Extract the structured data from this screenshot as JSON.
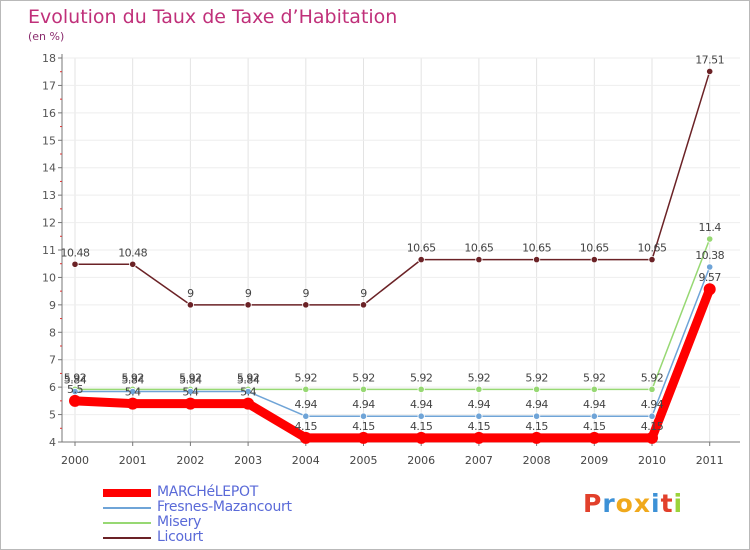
{
  "title": "Evolution du Taux de Taxe d’Habitation",
  "unit_label": "(en %)",
  "logo": {
    "text": "Proxiti",
    "colors": [
      "#e2402b",
      "#3d91d6",
      "#f0a91c",
      "#f0a91c",
      "#3d91d6",
      "#e2402b",
      "#9bd33a"
    ]
  },
  "chart_data": {
    "type": "line",
    "x": [
      "2000",
      "2001",
      "2002",
      "2003",
      "2004",
      "2005",
      "2006",
      "2007",
      "2008",
      "2009",
      "2010",
      "2011"
    ],
    "y_ticks": [
      "4",
      "5",
      "6",
      "7",
      "8",
      "9",
      "10",
      "11",
      "12",
      "13",
      "14",
      "15",
      "16",
      "17",
      "18"
    ],
    "ylim": [
      4,
      18
    ],
    "series": [
      {
        "name": "Licourt",
        "color": "#6b2226",
        "values": [
          10.48,
          10.48,
          9,
          9,
          9,
          9,
          10.65,
          10.65,
          10.65,
          10.65,
          10.65,
          17.51
        ],
        "labels": [
          "10.48",
          "10.48",
          "9",
          "9",
          "9",
          "9",
          "10.65",
          "10.65",
          "10.65",
          "10.65",
          "10.65",
          "17.51"
        ]
      },
      {
        "name": "Misery",
        "color": "#97d873",
        "values": [
          5.92,
          5.92,
          5.92,
          5.92,
          5.92,
          5.92,
          5.92,
          5.92,
          5.92,
          5.92,
          5.92,
          11.4
        ],
        "labels": [
          "5.92",
          "5.92",
          "5.92",
          "5.92",
          "5.92",
          "5.92",
          "5.92",
          "5.92",
          "5.92",
          "5.92",
          "5.92",
          "11.4"
        ]
      },
      {
        "name": "Fresnes-Mazancourt",
        "color": "#6fa4d7",
        "values": [
          5.84,
          5.84,
          5.84,
          5.84,
          4.94,
          4.94,
          4.94,
          4.94,
          4.94,
          4.94,
          4.94,
          10.38
        ],
        "labels": [
          "5.84",
          "5.84",
          "5.84",
          "5.84",
          "4.94",
          "4.94",
          "4.94",
          "4.94",
          "4.94",
          "4.94",
          "4.94",
          "10.38"
        ]
      },
      {
        "name": "MARCHéLEPOT",
        "color": "#ff0000",
        "values": [
          5.5,
          5.4,
          5.4,
          5.4,
          4.15,
          4.15,
          4.15,
          4.15,
          4.15,
          4.15,
          4.15,
          9.57
        ],
        "labels": [
          "5.5",
          "5.4",
          "5.4",
          "5.4",
          "4.15",
          "4.15",
          "4.15",
          "4.15",
          "4.15",
          "4.15",
          "4.15",
          "9.57"
        ]
      }
    ],
    "legend": [
      {
        "name": "MARCHéLEPOT",
        "color": "#ff0000",
        "text_color": "#5a6ad8"
      },
      {
        "name": "Fresnes-Mazancourt",
        "color": "#6fa4d7",
        "text_color": "#5a6ad8"
      },
      {
        "name": "Misery",
        "color": "#97d873",
        "text_color": "#5a6ad8"
      },
      {
        "name": "Licourt",
        "color": "#6b2226",
        "text_color": "#5a6ad8"
      }
    ]
  }
}
